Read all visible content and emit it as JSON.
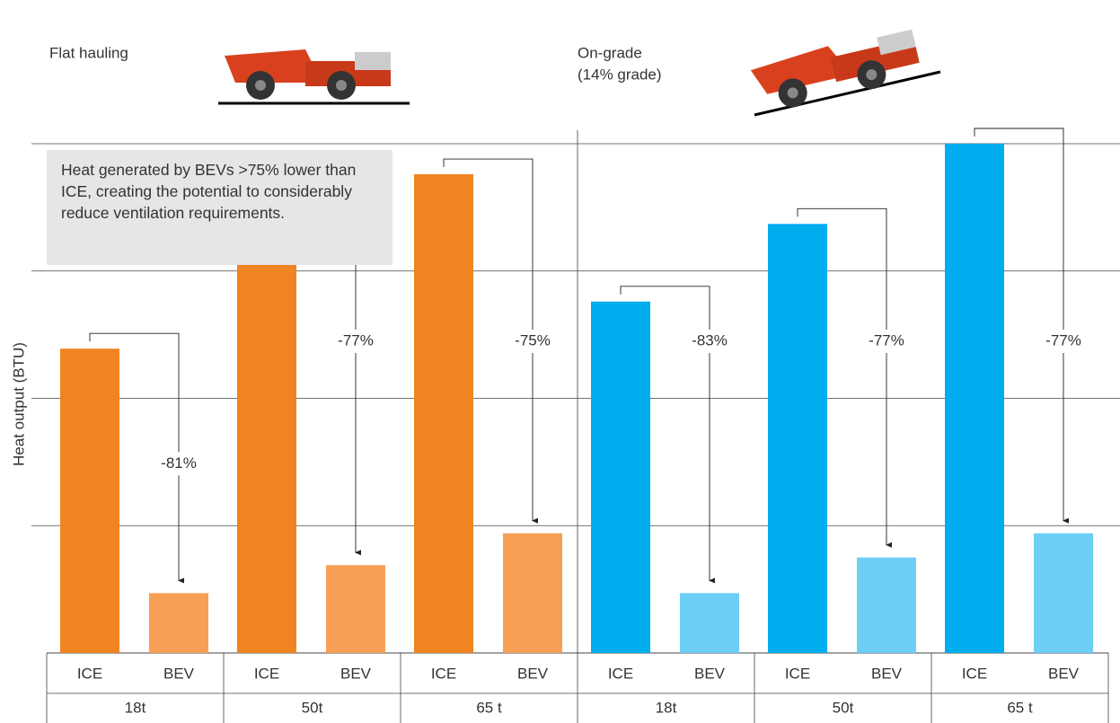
{
  "chart_data": {
    "type": "bar",
    "y_label": "Heat output (BTU)",
    "ylim": [
      0,
      4
    ],
    "yticks": [
      1,
      2,
      3,
      4
    ],
    "grid": true,
    "annotation": "Heat generated by BEVs >75% lower than ICE, creating the potential to considerably reduce ventilation requirements.",
    "panels": [
      {
        "title_lines": [
          "Flat hauling"
        ],
        "categories": [
          "18t",
          "50t",
          "65 t"
        ],
        "series": [
          {
            "name": "ICE",
            "color": "#f08422",
            "values": [
              2.39,
              3.07,
              3.76
            ]
          },
          {
            "name": "BEV",
            "color": "#f7a055",
            "values": [
              0.47,
              0.69,
              0.94
            ]
          }
        ],
        "change_labels": [
          "-81%",
          "-77%",
          "-75%"
        ]
      },
      {
        "title_lines": [
          "On-grade",
          "(14% grade)"
        ],
        "categories": [
          "18t",
          "50t",
          "65 t"
        ],
        "series": [
          {
            "name": "ICE",
            "color": "#00adef",
            "values": [
              2.76,
              3.37,
              4.0
            ]
          },
          {
            "name": "BEV",
            "color": "#6dcff6",
            "values": [
              0.47,
              0.75,
              0.94
            ]
          }
        ],
        "change_labels": [
          "-83%",
          "-77%",
          "-77%"
        ]
      }
    ]
  }
}
